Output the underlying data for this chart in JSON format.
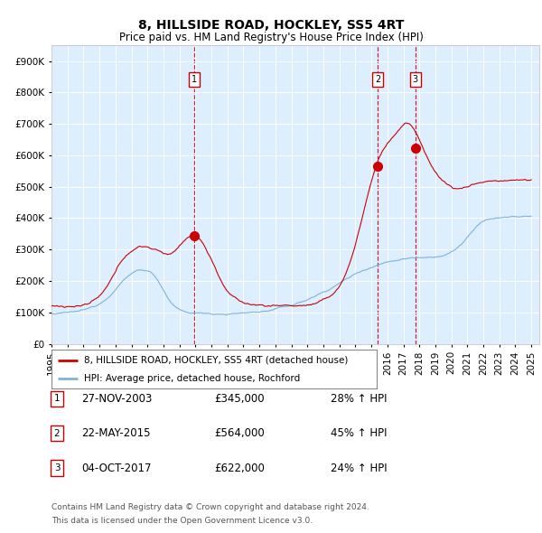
{
  "title": "8, HILLSIDE ROAD, HOCKLEY, SS5 4RT",
  "subtitle": "Price paid vs. HM Land Registry's House Price Index (HPI)",
  "legend_line1": "8, HILLSIDE ROAD, HOCKLEY, SS5 4RT (detached house)",
  "legend_line2": "HPI: Average price, detached house, Rochford",
  "transaction_labels": [
    "1",
    "2",
    "3"
  ],
  "transaction_dates": [
    "27-NOV-2003",
    "22-MAY-2015",
    "04-OCT-2017"
  ],
  "transaction_prices": [
    "£345,000",
    "£564,000",
    "£622,000"
  ],
  "transaction_hpi": [
    "28% ↑ HPI",
    "45% ↑ HPI",
    "24% ↑ HPI"
  ],
  "transaction_years": [
    2003.91,
    2015.39,
    2017.75
  ],
  "transaction_values": [
    345000,
    564000,
    622000
  ],
  "footnote1": "Contains HM Land Registry data © Crown copyright and database right 2024.",
  "footnote2": "This data is licensed under the Open Government Licence v3.0.",
  "red_color": "#cc0000",
  "blue_color": "#7eb3d8",
  "background_color": "#ddeeff",
  "ylim": [
    0,
    950000
  ],
  "xlim_start": 1995.0,
  "xlim_end": 2025.5
}
